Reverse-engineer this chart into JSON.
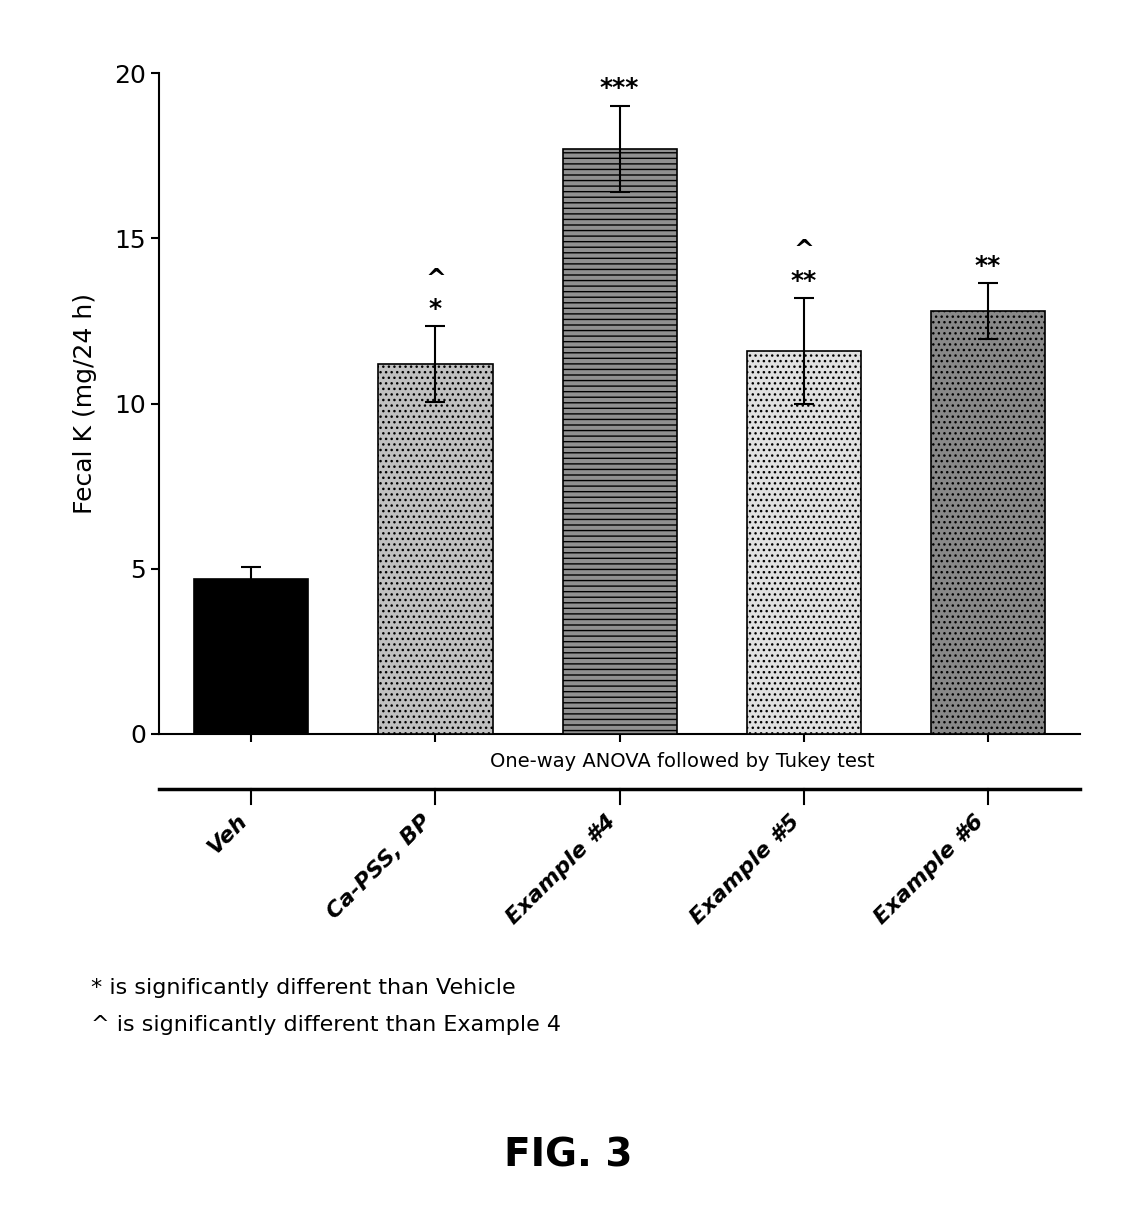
{
  "categories": [
    "Veh",
    "Ca-PSS, BP",
    "Example #4",
    "Example #5",
    "Example #6"
  ],
  "values": [
    4.7,
    11.2,
    17.7,
    11.6,
    12.8
  ],
  "errors": [
    0.35,
    1.15,
    1.3,
    1.6,
    0.85
  ],
  "bar_colors": [
    "#000000",
    "#aaaaaa",
    "#888888",
    "#cccccc",
    "#777777"
  ],
  "ylabel": "Fecal K (mg/24 h)",
  "ylim": [
    0,
    20
  ],
  "yticks": [
    0,
    5,
    10,
    15,
    20
  ],
  "anova_text": "One-way ANOVA followed by Tukey test",
  "legend_text1": "* is significantly different than Vehicle",
  "legend_text2": "^ is significantly different than Example 4",
  "fig_label": "FIG. 3",
  "background_color": "#ffffff"
}
